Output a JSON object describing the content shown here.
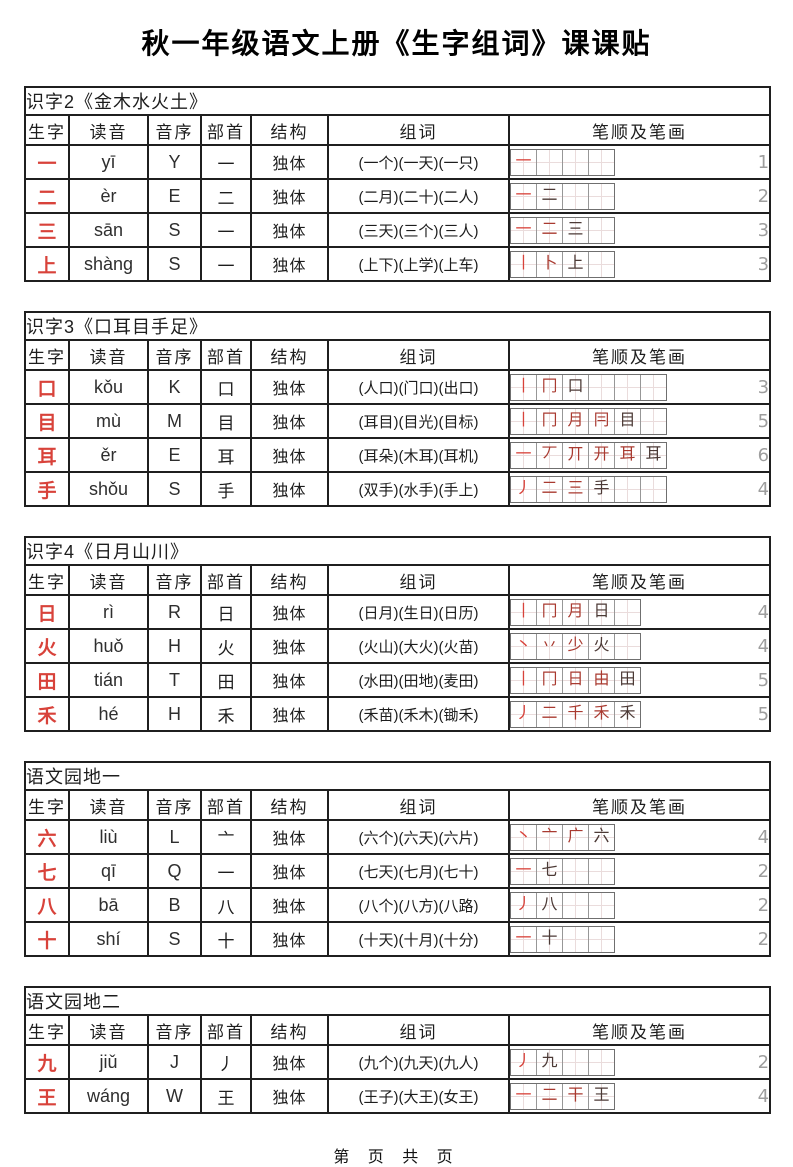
{
  "page": {
    "title": "秋一年级语文上册《生字组词》课课贴",
    "footer": "第 页 共 页"
  },
  "columns": [
    "生字",
    "读音",
    "音序",
    "部首",
    "结构",
    "组词",
    "笔顺及笔画"
  ],
  "colors": {
    "char_red": "#d8423a",
    "stroke_red": "#c0392b",
    "count_gray": "#9e9e9e",
    "border_dark": "#1f1f1f"
  },
  "tables": [
    {
      "caption": "识字2《金木水火土》",
      "grid_cells": 4,
      "rows": [
        {
          "char": "一",
          "pinyin": "yī",
          "initial": "Y",
          "radical": "一",
          "structure": "独体",
          "words": "(一个)(一天)(一只)",
          "strokes": [
            "一"
          ],
          "stroke_count": "1"
        },
        {
          "char": "二",
          "pinyin": "èr",
          "initial": "E",
          "radical": "二",
          "structure": "独体",
          "words": "(二月)(二十)(二人)",
          "strokes": [
            "一",
            "二"
          ],
          "stroke_count": "2"
        },
        {
          "char": "三",
          "pinyin": "sān",
          "initial": "S",
          "radical": "一",
          "structure": "独体",
          "words": "(三天)(三个)(三人)",
          "strokes": [
            "一",
            "二",
            "三"
          ],
          "stroke_count": "3"
        },
        {
          "char": "上",
          "pinyin": "shàng",
          "initial": "S",
          "radical": "一",
          "structure": "独体",
          "words": "(上下)(上学)(上车)",
          "strokes": [
            "丨",
            "卜",
            "上"
          ],
          "stroke_count": "3"
        }
      ]
    },
    {
      "caption": "识字3《口耳目手足》",
      "grid_cells": 6,
      "rows": [
        {
          "char": "口",
          "pinyin": "kǒu",
          "initial": "K",
          "radical": "口",
          "structure": "独体",
          "words": "(人口)(门口)(出口)",
          "strokes": [
            "丨",
            "冂",
            "口"
          ],
          "stroke_count": "3"
        },
        {
          "char": "目",
          "pinyin": "mù",
          "initial": "M",
          "radical": "目",
          "structure": "独体",
          "words": "(耳目)(目光)(目标)",
          "strokes": [
            "丨",
            "冂",
            "月",
            "冃",
            "目"
          ],
          "stroke_count": "5"
        },
        {
          "char": "耳",
          "pinyin": "ěr",
          "initial": "E",
          "radical": "耳",
          "structure": "独体",
          "words": "(耳朵)(木耳)(耳机)",
          "strokes": [
            "一",
            "丆",
            "丌",
            "开",
            "耳",
            "耳"
          ],
          "stroke_count": "6"
        },
        {
          "char": "手",
          "pinyin": "shǒu",
          "initial": "S",
          "radical": "手",
          "structure": "独体",
          "words": "(双手)(水手)(手上)",
          "strokes": [
            "丿",
            "二",
            "三",
            "手"
          ],
          "stroke_count": "4"
        }
      ]
    },
    {
      "caption": "识字4《日月山川》",
      "grid_cells": 5,
      "rows": [
        {
          "char": "日",
          "pinyin": "rì",
          "initial": "R",
          "radical": "日",
          "structure": "独体",
          "words": "(日月)(生日)(日历)",
          "strokes": [
            "丨",
            "冂",
            "月",
            "日"
          ],
          "stroke_count": "4"
        },
        {
          "char": "火",
          "pinyin": "huǒ",
          "initial": "H",
          "radical": "火",
          "structure": "独体",
          "words": "(火山)(大火)(火苗)",
          "strokes": [
            "丶",
            "丷",
            "少",
            "火"
          ],
          "stroke_count": "4"
        },
        {
          "char": "田",
          "pinyin": "tián",
          "initial": "T",
          "radical": "田",
          "structure": "独体",
          "words": "(水田)(田地)(麦田)",
          "strokes": [
            "丨",
            "冂",
            "日",
            "由",
            "田"
          ],
          "stroke_count": "5"
        },
        {
          "char": "禾",
          "pinyin": "hé",
          "initial": "H",
          "radical": "禾",
          "structure": "独体",
          "words": "(禾苗)(禾木)(锄禾)",
          "strokes": [
            "丿",
            "二",
            "千",
            "禾",
            "禾"
          ],
          "stroke_count": "5"
        }
      ]
    },
    {
      "caption": "语文园地一",
      "grid_cells": 4,
      "rows": [
        {
          "char": "六",
          "pinyin": "liù",
          "initial": "L",
          "radical": "亠",
          "structure": "独体",
          "words": "(六个)(六天)(六片)",
          "strokes": [
            "丶",
            "亠",
            "广",
            "六"
          ],
          "stroke_count": "4"
        },
        {
          "char": "七",
          "pinyin": "qī",
          "initial": "Q",
          "radical": "一",
          "structure": "独体",
          "words": "(七天)(七月)(七十)",
          "strokes": [
            "一",
            "七"
          ],
          "stroke_count": "2"
        },
        {
          "char": "八",
          "pinyin": "bā",
          "initial": "B",
          "radical": "八",
          "structure": "独体",
          "words": "(八个)(八方)(八路)",
          "strokes": [
            "丿",
            "八"
          ],
          "stroke_count": "2"
        },
        {
          "char": "十",
          "pinyin": "shí",
          "initial": "S",
          "radical": "十",
          "structure": "独体",
          "words": "(十天)(十月)(十分)",
          "strokes": [
            "一",
            "十"
          ],
          "stroke_count": "2"
        }
      ]
    },
    {
      "caption": "语文园地二",
      "grid_cells": 4,
      "rows": [
        {
          "char": "九",
          "pinyin": "jiǔ",
          "initial": "J",
          "radical": "丿",
          "structure": "独体",
          "words": "(九个)(九天)(九人)",
          "strokes": [
            "丿",
            "九"
          ],
          "stroke_count": "2"
        },
        {
          "char": "王",
          "pinyin": "wáng",
          "initial": "W",
          "radical": "王",
          "structure": "独体",
          "words": "(王子)(大王)(女王)",
          "strokes": [
            "一",
            "二",
            "干",
            "王"
          ],
          "stroke_count": "4"
        }
      ]
    }
  ]
}
